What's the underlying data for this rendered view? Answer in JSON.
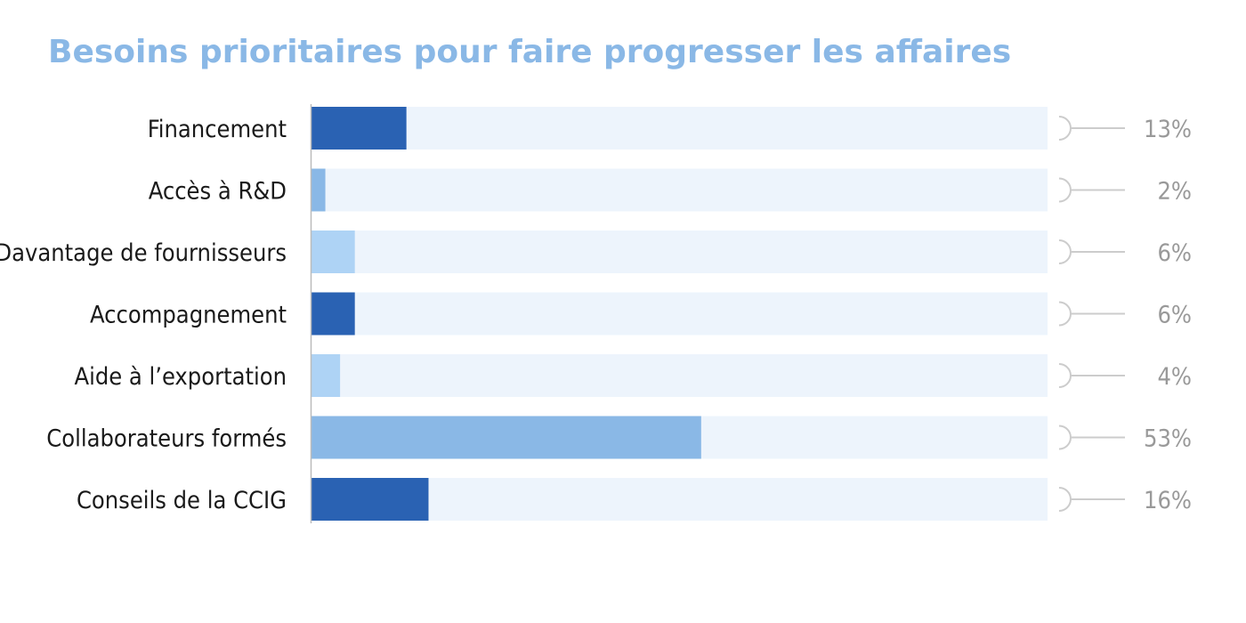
{
  "chart_data": {
    "type": "bar",
    "orientation": "horizontal",
    "title": "Besoins prioritaires pour faire progresser les affaires",
    "categories": [
      "Financement",
      "Accès à R&D",
      "Davantage de fournisseurs",
      "Accompagnement",
      "Aide à l’exportation",
      "Collaborateurs formés",
      "Conseils de la CCIG"
    ],
    "values": [
      13,
      2,
      6,
      6,
      4,
      53,
      16
    ],
    "value_labels": [
      "13%",
      "2%",
      "6%",
      "6%",
      "4%",
      "53%",
      "16%"
    ],
    "unit": "%",
    "xlim": [
      0,
      100
    ],
    "grid": false,
    "legend": "none",
    "colors": {
      "title": "#8ab8e6",
      "track": "#edf4fc",
      "axis": "#bbbbbb",
      "connector": "#cccccc",
      "value_text": "#999999",
      "category_text": "#1a1a1a"
    },
    "bar_colors": [
      "#2a62b3",
      "#8ab8e6",
      "#aed3f5",
      "#2a62b3",
      "#aed3f5",
      "#8ab8e6",
      "#2a62b3"
    ]
  }
}
